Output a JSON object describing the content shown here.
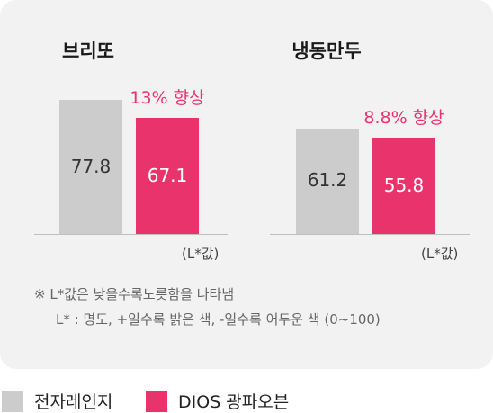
{
  "chart_data": {
    "type": "bar",
    "ylabel": "(L*값)",
    "groups": [
      {
        "name": "브리또",
        "annotation": "13% 향상",
        "values": [
          77.8,
          67.1
        ],
        "labels": [
          "77.8",
          "67.1"
        ]
      },
      {
        "name": "냉동만두",
        "annotation": "8.8% 향상",
        "values": [
          61.2,
          55.8
        ],
        "labels": [
          "61.2",
          "55.8"
        ]
      }
    ],
    "series": [
      {
        "name": "전자레인지",
        "color": "#cccccc"
      },
      {
        "name": "DIOS 광파오븐",
        "color": "#e8336d"
      }
    ]
  },
  "notes": {
    "line1": "※ L*값은 낮을수록노릇함을 나타냄",
    "line2": "L* : 명도, +일수록 밝은 색, -일수록 어두운 색 (0~100)"
  }
}
